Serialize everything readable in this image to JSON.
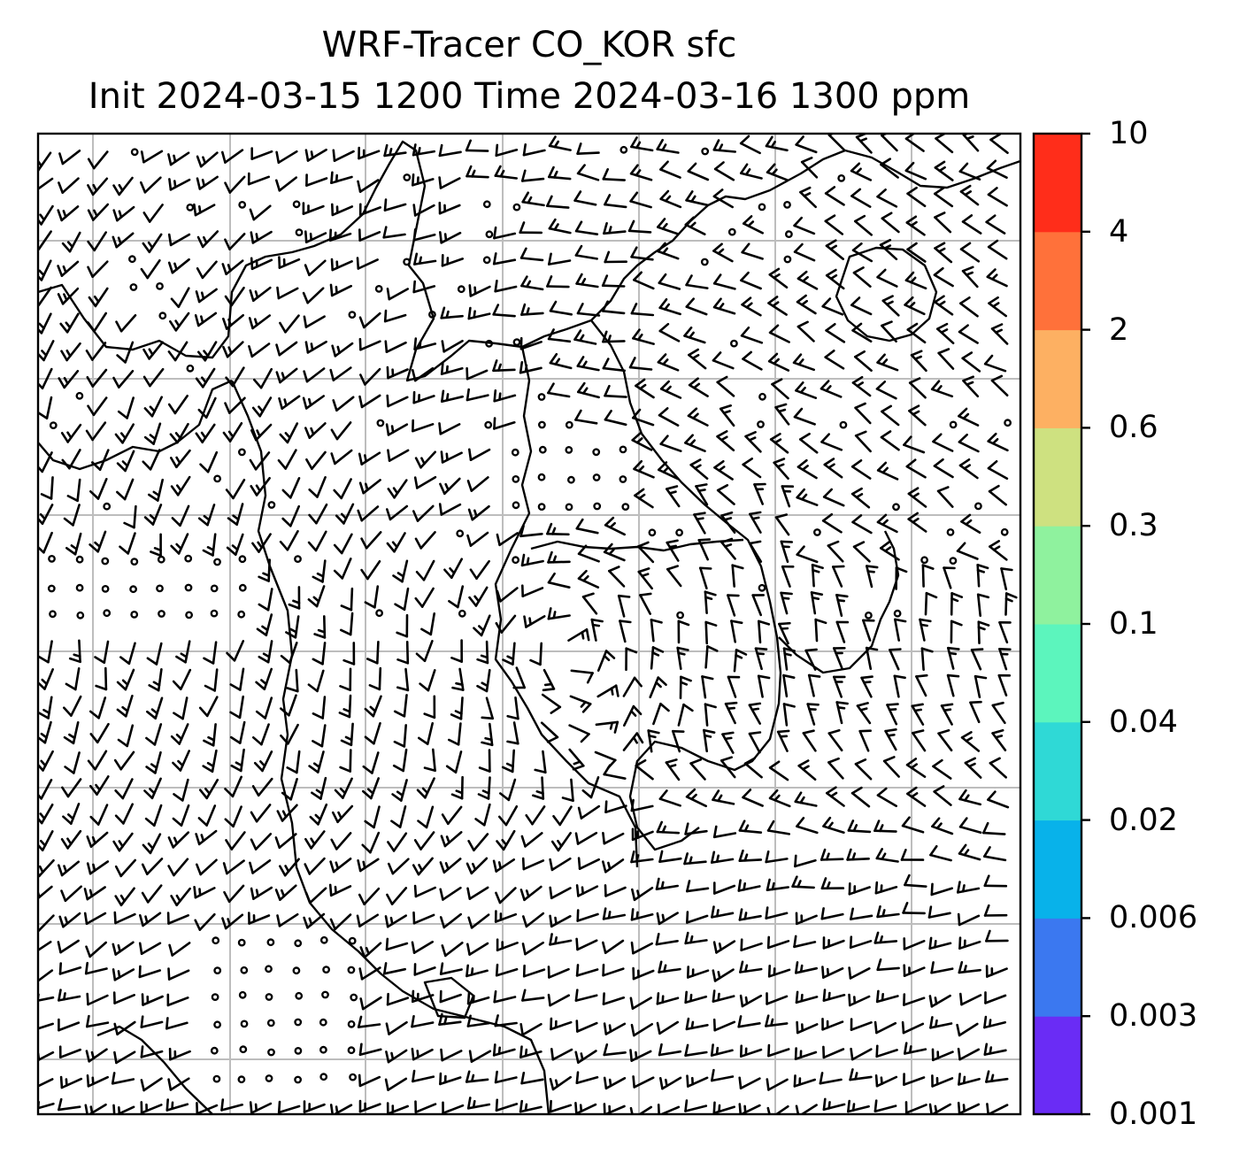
{
  "title_line1": "WRF-Tracer CO_KOR sfc",
  "title_line2": "Init 2024-03-15 1200 Time 2024-03-16 1300 ppm",
  "colorbar": {
    "levels": [
      "0.001",
      "0.003",
      "0.006",
      "0.02",
      "0.04",
      "0.1",
      "0.3",
      "0.6",
      "2",
      "4",
      "10"
    ],
    "colors": [
      "#6a2cf5",
      "#3b78f0",
      "#08b2ea",
      "#2fd9d6",
      "#5cf5bd",
      "#8ff29e",
      "#cee180",
      "#fdb062",
      "#ff713a",
      "#ff2d1a"
    ]
  },
  "style": {
    "gridline_color": "#bdbdbd",
    "barb_color": "#000000",
    "coast_color": "#000000"
  }
}
